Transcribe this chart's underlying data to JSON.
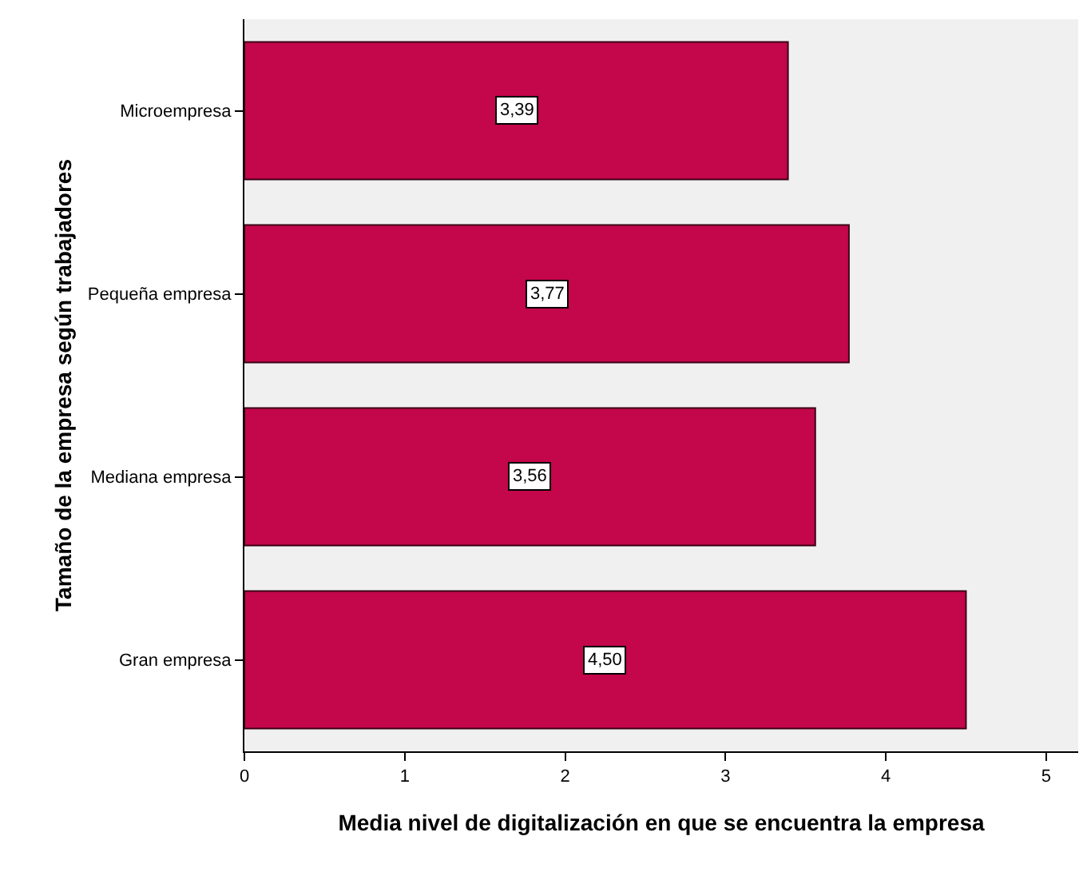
{
  "chart_data": {
    "type": "bar",
    "orientation": "horizontal",
    "xlabel": "Media nivel de digitalización en que se encuentra la empresa",
    "ylabel": "Tamaño de la empresa según trabajadores",
    "categories": [
      "Microempresa",
      "Pequeña empresa",
      "Mediana empresa",
      "Gran empresa"
    ],
    "values": [
      3.39,
      3.77,
      3.56,
      4.5
    ],
    "value_labels": [
      "3,39",
      "3,77",
      "3,56",
      "4,50"
    ],
    "color": "#c4064b",
    "xlim": [
      0,
      5.2
    ],
    "xticks": [
      0,
      1,
      2,
      3,
      4,
      5
    ]
  }
}
